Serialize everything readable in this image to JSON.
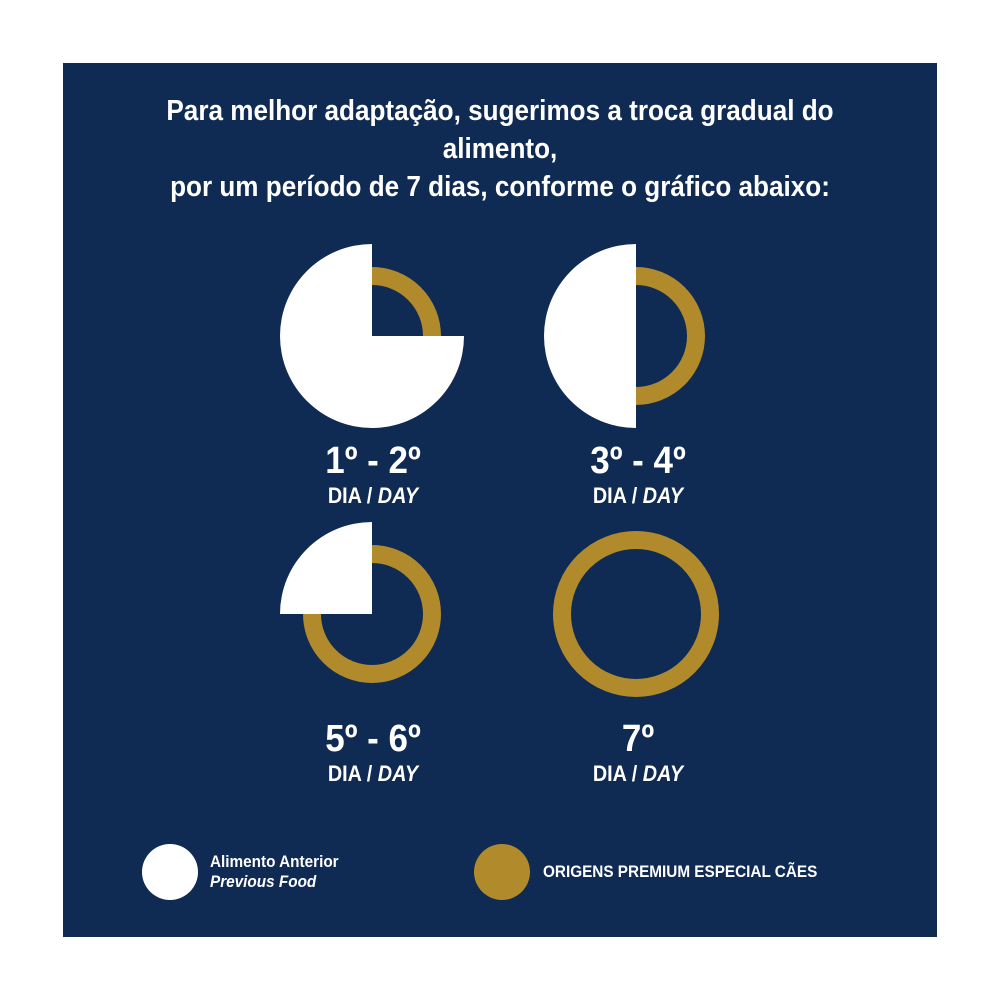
{
  "colors": {
    "background": "#0f2a53",
    "previous_food": "#ffffff",
    "new_food": "#b08a2b"
  },
  "headline": {
    "line1": "Para melhor adaptação, sugerimos a troca gradual do alimento,",
    "line2": "por um período de 7 dias, conforme o gráfico abaixo:"
  },
  "stages": [
    {
      "days": "1º - 2º",
      "unit_pt": "DIA",
      "unit_sep": " / ",
      "unit_en": "DAY",
      "previous_fraction": 0.75,
      "new_fraction": 0.25
    },
    {
      "days": "3º - 4º",
      "unit_pt": "DIA",
      "unit_sep": " / ",
      "unit_en": "DAY",
      "previous_fraction": 0.5,
      "new_fraction": 0.5
    },
    {
      "days": "5º - 6º",
      "unit_pt": "DIA",
      "unit_sep": " / ",
      "unit_en": "DAY",
      "previous_fraction": 0.25,
      "new_fraction": 0.75
    },
    {
      "days": "7º",
      "unit_pt": "DIA",
      "unit_sep": " / ",
      "unit_en": "DAY",
      "previous_fraction": 0,
      "new_fraction": 1
    }
  ],
  "legend": {
    "previous_pt": "Alimento Anterior",
    "previous_en": "Previous Food",
    "new_food": "ORIGENS PREMIUM ESPECIAL CÃES"
  }
}
